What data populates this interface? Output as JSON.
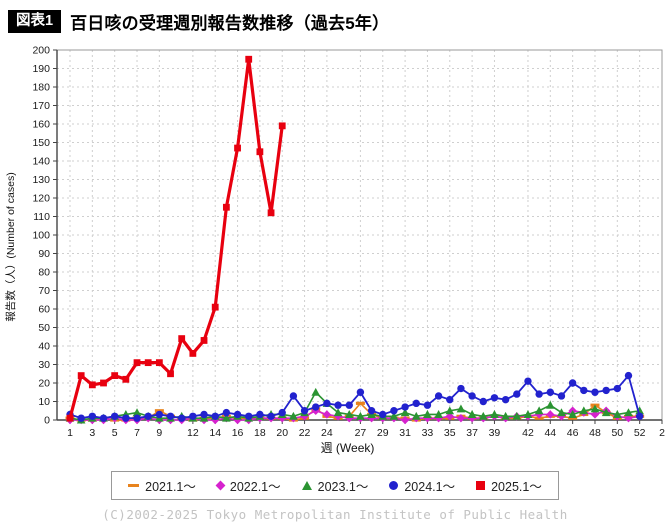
{
  "header": {
    "badge": "図表1",
    "title": "百日咳の受理週別報告数推移（過去5年）"
  },
  "footer": {
    "copyright": "(C)2002-2025 Tokyo Metropolitan Institute of Public Health"
  },
  "chart_data": {
    "type": "line",
    "title": "百日咳の受理週別報告数推移（過去5年）",
    "xlabel": "週 (Week)",
    "ylabel": "報告数（人）(Number of cases)",
    "ylim": [
      0,
      200
    ],
    "ytick_step": 10,
    "x_slots": 54,
    "xtick_weeks": [
      1,
      3,
      5,
      7,
      9,
      12,
      14,
      16,
      18,
      20,
      22,
      24,
      27,
      29,
      31,
      33,
      35,
      37,
      39,
      42,
      44,
      46,
      48,
      50,
      52,
      54
    ],
    "xtick_labels": [
      "1",
      "3",
      "5",
      "7",
      "9",
      "12",
      "14",
      "16",
      "18",
      "20",
      "22",
      "24",
      "27",
      "29",
      "31",
      "33",
      "35",
      "37",
      "39",
      "42",
      "44",
      "46",
      "48",
      "50",
      "52",
      "2"
    ],
    "grid": true,
    "legend_position": "bottom",
    "series": [
      {
        "name": "2021.1～",
        "color": "#E8831D",
        "marker": "dash",
        "start_week": 1,
        "line_width": 1.6,
        "values": [
          1,
          0,
          0,
          1,
          0,
          0,
          1,
          1,
          5,
          2,
          1,
          0,
          1,
          1,
          2,
          1,
          1,
          1,
          1,
          1,
          0,
          1,
          6,
          2,
          1,
          2,
          9,
          3,
          1,
          1,
          1,
          0,
          1,
          1,
          1,
          2,
          1,
          1,
          2,
          1,
          1,
          2,
          1,
          2,
          2,
          1,
          3,
          8,
          4,
          1,
          2,
          2
        ]
      },
      {
        "name": "2022.1～",
        "color": "#D622CE",
        "marker": "diamond",
        "start_week": 1,
        "line_width": 1.6,
        "values": [
          0,
          0,
          0,
          0,
          1,
          0,
          0,
          1,
          0,
          0,
          0,
          1,
          0,
          0,
          1,
          0,
          0,
          1,
          1,
          1,
          1,
          2,
          5,
          3,
          2,
          1,
          1,
          1,
          1,
          1,
          0,
          1,
          1,
          1,
          2,
          1,
          1,
          1,
          2,
          1,
          2,
          2,
          3,
          3,
          2,
          5,
          4,
          3,
          5,
          2,
          1,
          2
        ]
      },
      {
        "name": "2023.1～",
        "color": "#2B9432",
        "marker": "triangle",
        "start_week": 1,
        "line_width": 1.6,
        "values": [
          1,
          0,
          1,
          1,
          2,
          3,
          4,
          2,
          1,
          1,
          2,
          1,
          1,
          2,
          1,
          2,
          1,
          2,
          3,
          3,
          2,
          4,
          15,
          9,
          4,
          3,
          2,
          3,
          2,
          2,
          4,
          2,
          3,
          3,
          5,
          6,
          3,
          2,
          3,
          2,
          2,
          3,
          5,
          8,
          4,
          3,
          5,
          6,
          4,
          3,
          4,
          5
        ]
      },
      {
        "name": "2024.1～",
        "color": "#2222CE",
        "marker": "circle",
        "start_week": 1,
        "line_width": 1.8,
        "values": [
          3,
          1,
          2,
          1,
          2,
          1,
          1,
          2,
          3,
          2,
          1,
          2,
          3,
          2,
          4,
          3,
          2,
          3,
          2,
          4,
          13,
          5,
          7,
          9,
          8,
          8,
          15,
          5,
          3,
          5,
          7,
          9,
          8,
          13,
          11,
          17,
          13,
          10,
          12,
          11,
          14,
          21,
          14,
          15,
          13,
          20,
          16,
          15,
          16,
          17,
          24,
          2
        ]
      },
      {
        "name": "2025.1～",
        "color": "#E8000F",
        "marker": "square",
        "start_week": 1,
        "line_width": 3.2,
        "values": [
          1,
          24,
          19,
          20,
          24,
          22,
          31,
          31,
          31,
          25,
          44,
          36,
          43,
          61,
          115,
          147,
          195,
          145,
          112,
          159
        ]
      }
    ]
  }
}
